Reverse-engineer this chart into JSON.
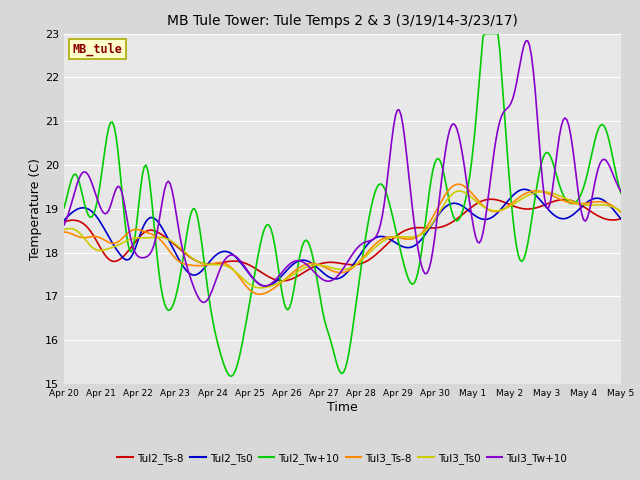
{
  "title": "MB Tule Tower: Tule Temps 2 & 3 (3/19/14-3/23/17)",
  "xlabel": "Time",
  "ylabel": "Temperature (C)",
  "ylim": [
    15.0,
    23.0
  ],
  "yticks": [
    15.0,
    16.0,
    17.0,
    18.0,
    19.0,
    20.0,
    21.0,
    22.0,
    23.0
  ],
  "fig_bg_color": "#d8d8d8",
  "plot_bg_color": "#e8e8e8",
  "legend_label": "MB_tule",
  "series_names": [
    "Tul2_Ts-8",
    "Tul2_Ts0",
    "Tul2_Tw+10",
    "Tul3_Ts-8",
    "Tul3_Ts0",
    "Tul3_Tw+10"
  ],
  "series_colors": [
    "#cc0000",
    "#0000cc",
    "#00cc00",
    "#ff8800",
    "#cccc00",
    "#8800cc"
  ],
  "series_lw": [
    1.2,
    1.2,
    1.2,
    1.2,
    1.2,
    1.2
  ],
  "x_tick_labels": [
    "Apr 20",
    "Apr 21",
    "Apr 22",
    "Apr 23",
    "Apr 24",
    "Apr 25",
    "Apr 26",
    "Apr 27",
    "Apr 28",
    "Apr 29",
    "Apr 30",
    "May 1",
    "May 2",
    "May 3",
    "May 4",
    "May 5"
  ]
}
